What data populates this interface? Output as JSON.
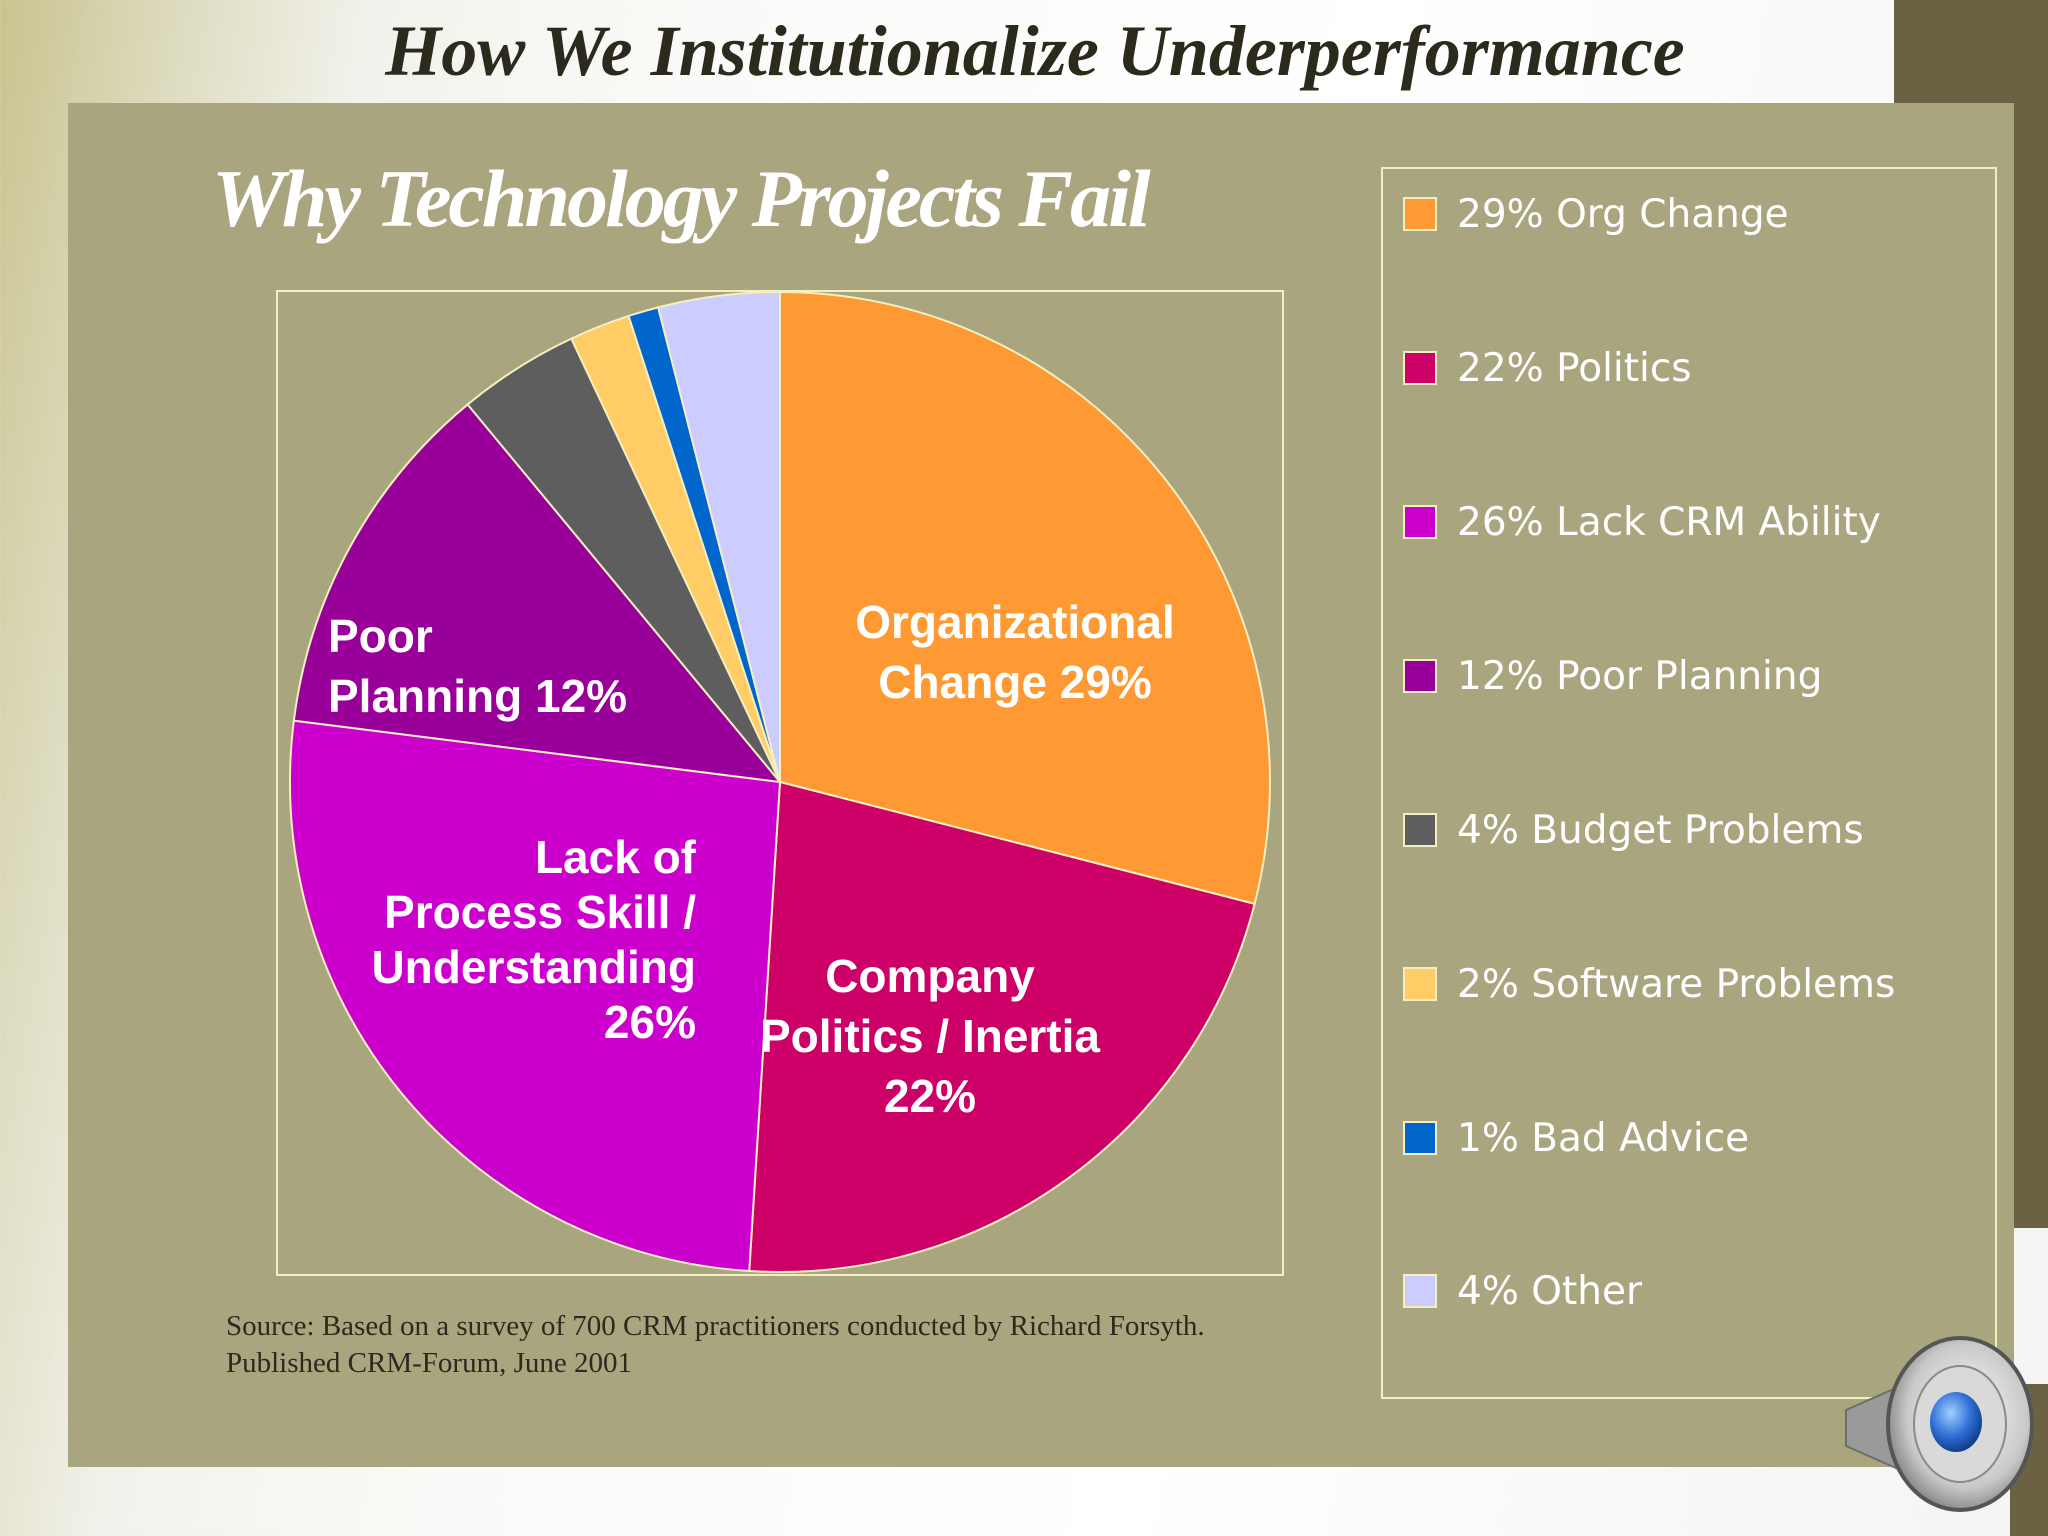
{
  "slide": {
    "title": "How We Institutionalize Underperformance",
    "source": "Source:  Based on a survey of 700 CRM practitioners conducted by Richard Forsyth.\nPublished CRM-Forum, June 2001"
  },
  "speaker_icon": "speaker-icon",
  "chart_data": {
    "type": "pie",
    "title": "Why Technology Projects Fail",
    "slices": [
      {
        "value": 29,
        "color": "#ff9933",
        "label": "Organizational\nChange 29%",
        "legend": "29% Org Change"
      },
      {
        "value": 22,
        "color": "#cc0066",
        "label": "Company\nPolitics / Inertia\n22%",
        "legend": "22% Politics"
      },
      {
        "value": 26,
        "color": "#cc00cc",
        "label": "Lack of\nProcess Skill  /\nUnderstanding\n26%",
        "legend": "26% Lack CRM Ability"
      },
      {
        "value": 12,
        "color": "#990099",
        "label": "Poor\nPlanning 12%",
        "legend": "12% Poor Planning"
      },
      {
        "value": 4,
        "color": "#5f5e5e",
        "label": "",
        "legend": "4% Budget Problems"
      },
      {
        "value": 2,
        "color": "#ffcc66",
        "label": "",
        "legend": "2% Software Problems"
      },
      {
        "value": 1,
        "color": "#0066cc",
        "label": "",
        "legend": "1% Bad Advice"
      },
      {
        "value": 4,
        "color": "#ccccff",
        "label": "",
        "legend": "4% Other"
      }
    ],
    "legend_placement": "right"
  }
}
